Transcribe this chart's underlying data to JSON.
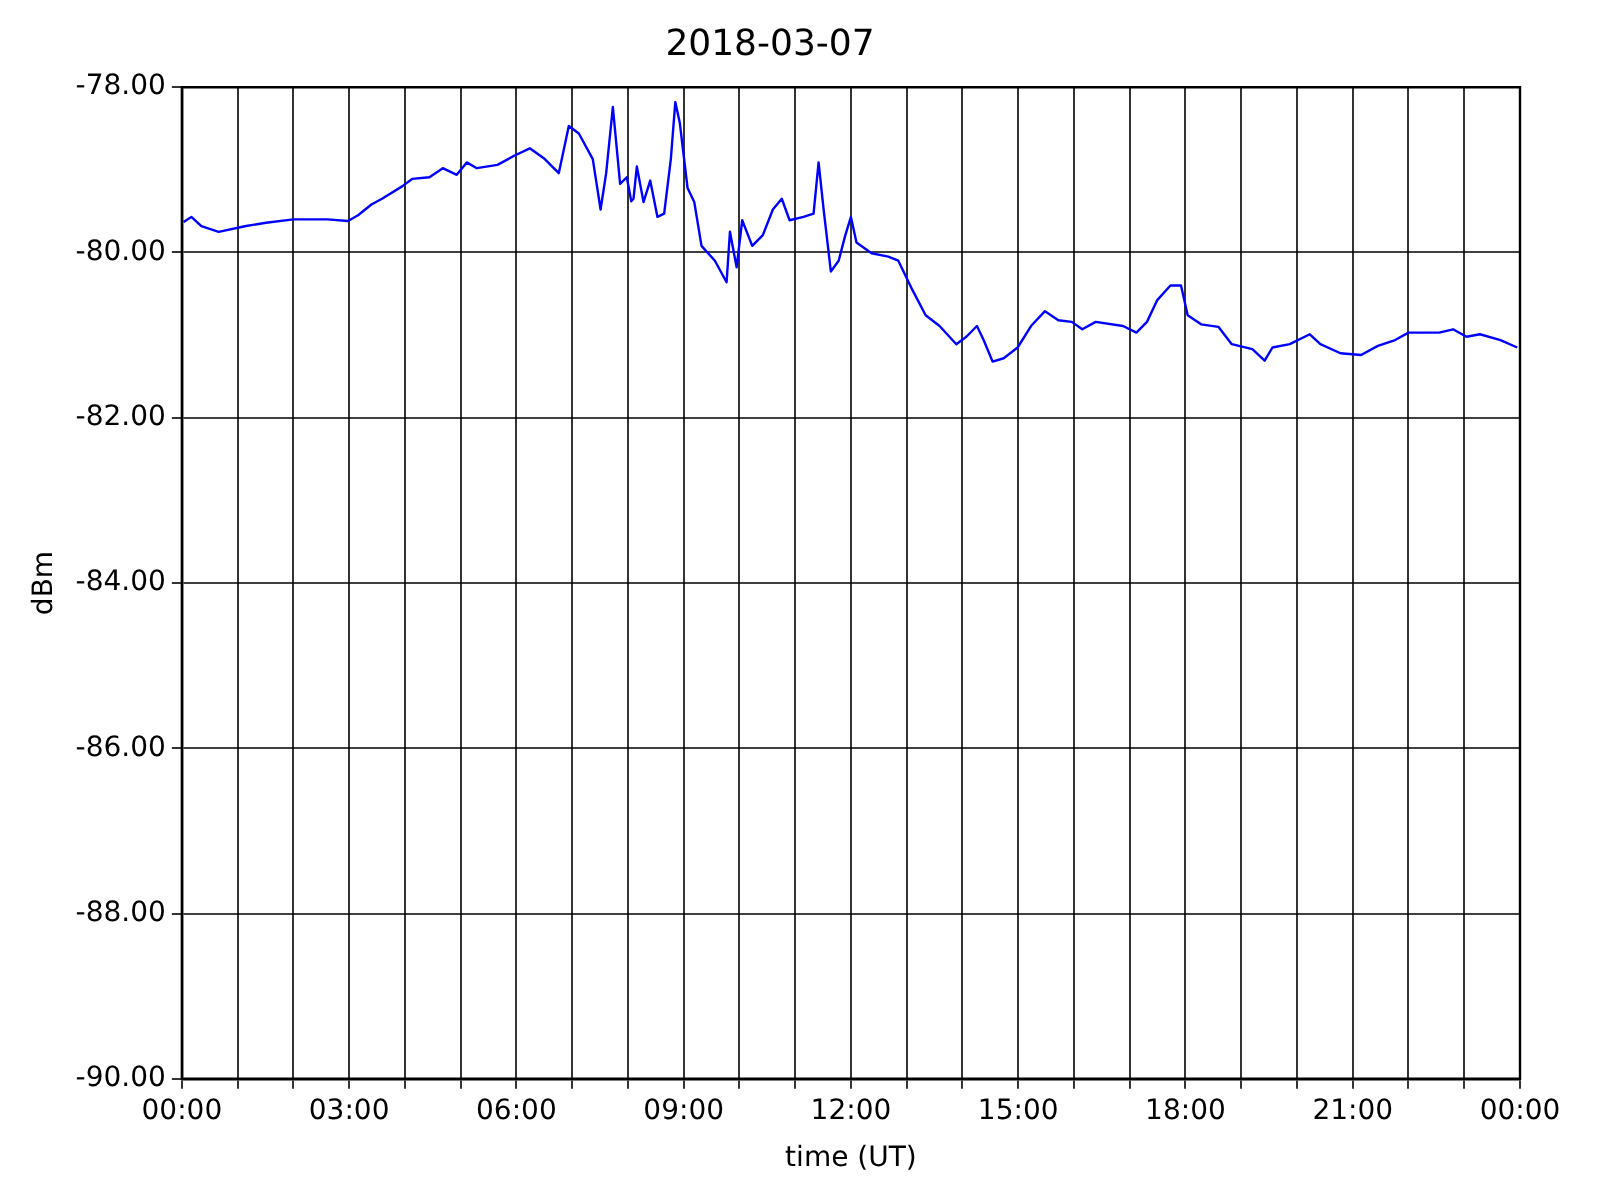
{
  "chart_data": {
    "type": "line",
    "title": "2018-03-07",
    "xlabel": "time (UT)",
    "ylabel": "dBm",
    "xlim": [
      0,
      24
    ],
    "ylim": [
      -90,
      -78
    ],
    "xticks": [
      {
        "value": 0,
        "label": "00:00"
      },
      {
        "value": 1,
        "label": null
      },
      {
        "value": 2,
        "label": null
      },
      {
        "value": 3,
        "label": "03:00"
      },
      {
        "value": 4,
        "label": null
      },
      {
        "value": 5,
        "label": null
      },
      {
        "value": 6,
        "label": "06:00"
      },
      {
        "value": 7,
        "label": null
      },
      {
        "value": 8,
        "label": null
      },
      {
        "value": 9,
        "label": "09:00"
      },
      {
        "value": 10,
        "label": null
      },
      {
        "value": 11,
        "label": null
      },
      {
        "value": 12,
        "label": "12:00"
      },
      {
        "value": 13,
        "label": null
      },
      {
        "value": 14,
        "label": null
      },
      {
        "value": 15,
        "label": "15:00"
      },
      {
        "value": 16,
        "label": null
      },
      {
        "value": 17,
        "label": null
      },
      {
        "value": 18,
        "label": "18:00"
      },
      {
        "value": 19,
        "label": null
      },
      {
        "value": 20,
        "label": null
      },
      {
        "value": 21,
        "label": "21:00"
      },
      {
        "value": 22,
        "label": null
      },
      {
        "value": 23,
        "label": null
      },
      {
        "value": 24,
        "label": "00:00"
      }
    ],
    "yticks": [
      {
        "value": -90,
        "label": "-90.00"
      },
      {
        "value": -88,
        "label": "-88.00"
      },
      {
        "value": -86,
        "label": "-86.00"
      },
      {
        "value": -84,
        "label": "-84.00"
      },
      {
        "value": -82,
        "label": "-82.00"
      },
      {
        "value": -80,
        "label": "-80.00"
      },
      {
        "value": -78,
        "label": "-78.00"
      }
    ],
    "grid": true,
    "legend": false,
    "marker": "none",
    "line_style": "solid",
    "series": [
      {
        "color": "#0000ff",
        "x": [
          0.03,
          0.17,
          0.35,
          0.66,
          1.15,
          1.51,
          2.0,
          2.61,
          2.98,
          3.16,
          3.4,
          3.59,
          3.95,
          4.13,
          4.44,
          4.68,
          4.93,
          5.11,
          5.29,
          5.66,
          5.96,
          6.24,
          6.51,
          6.76,
          6.94,
          7.12,
          7.37,
          7.51,
          7.61,
          7.73,
          7.86,
          7.98,
          8.06,
          8.1,
          8.16,
          8.28,
          8.4,
          8.53,
          8.65,
          8.77,
          8.85,
          8.93,
          9.07,
          9.19,
          9.32,
          9.56,
          9.77,
          9.83,
          9.95,
          10.05,
          10.23,
          10.42,
          10.6,
          10.76,
          10.9,
          11.15,
          11.33,
          11.42,
          11.51,
          11.64,
          11.78,
          11.9,
          12.0,
          12.1,
          12.37,
          12.67,
          12.85,
          13.1,
          13.34,
          13.59,
          13.89,
          14.07,
          14.26,
          14.38,
          14.54,
          14.74,
          14.99,
          15.23,
          15.48,
          15.72,
          15.96,
          16.15,
          16.39,
          16.88,
          17.12,
          17.31,
          17.49,
          17.73,
          17.92,
          18.04,
          18.28,
          18.59,
          18.83,
          19.2,
          19.42,
          19.56,
          19.87,
          20.23,
          20.42,
          20.78,
          21.15,
          21.45,
          21.76,
          22.0,
          22.31,
          22.55,
          22.8,
          23.04,
          23.28,
          23.65,
          23.95
        ],
        "values": [
          -79.63,
          -79.57,
          -79.68,
          -79.75,
          -79.68,
          -79.64,
          -79.6,
          -79.6,
          -79.62,
          -79.55,
          -79.42,
          -79.35,
          -79.2,
          -79.11,
          -79.09,
          -78.98,
          -79.06,
          -78.91,
          -78.98,
          -78.94,
          -78.83,
          -78.74,
          -78.87,
          -79.04,
          -78.47,
          -78.56,
          -78.87,
          -79.48,
          -79.04,
          -78.24,
          -79.17,
          -79.09,
          -79.38,
          -79.35,
          -78.96,
          -79.39,
          -79.13,
          -79.57,
          -79.53,
          -78.87,
          -78.18,
          -78.43,
          -79.22,
          -79.39,
          -79.92,
          -80.1,
          -80.36,
          -79.75,
          -80.18,
          -79.61,
          -79.92,
          -79.79,
          -79.48,
          -79.35,
          -79.61,
          -79.57,
          -79.53,
          -78.91,
          -79.48,
          -80.23,
          -80.1,
          -79.79,
          -79.57,
          -79.88,
          -80.01,
          -80.05,
          -80.1,
          -80.45,
          -80.76,
          -80.89,
          -81.11,
          -81.02,
          -80.89,
          -81.06,
          -81.32,
          -81.28,
          -81.15,
          -80.89,
          -80.71,
          -80.82,
          -80.84,
          -80.93,
          -80.84,
          -80.89,
          -80.97,
          -80.84,
          -80.58,
          -80.4,
          -80.4,
          -80.76,
          -80.87,
          -80.9,
          -81.11,
          -81.17,
          -81.31,
          -81.15,
          -81.11,
          -80.99,
          -81.11,
          -81.22,
          -81.24,
          -81.13,
          -81.06,
          -80.97,
          -80.97,
          -80.97,
          -80.93,
          -81.02,
          -80.99,
          -81.06,
          -81.15
        ]
      }
    ]
  }
}
